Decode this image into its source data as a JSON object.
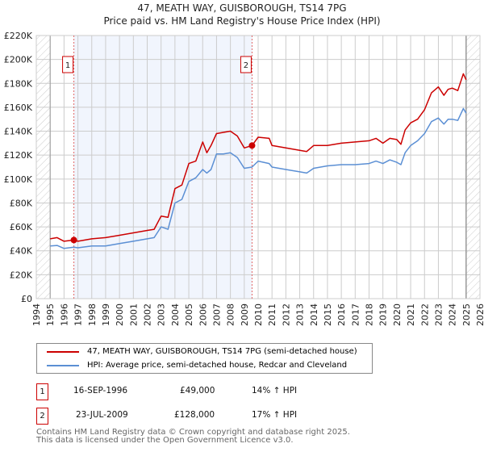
{
  "title_line1": "47, MEATH WAY, GUISBOROUGH, TS14 7PG",
  "title_line2": "Price paid vs. HM Land Registry's House Price Index (HPI)",
  "chart_data": {
    "type": "line",
    "title": "47, MEATH WAY, GUISBOROUGH, TS14 7PG — Price paid vs. HM Land Registry's House Price Index (HPI)",
    "xlim": [
      1994,
      2026
    ],
    "ylim": [
      0,
      220000
    ],
    "x_ticks": [
      "1994",
      "1995",
      "1996",
      "1997",
      "1998",
      "1999",
      "2000",
      "2001",
      "2002",
      "2003",
      "2004",
      "2005",
      "2006",
      "2007",
      "2008",
      "2009",
      "2010",
      "2011",
      "2012",
      "2013",
      "2014",
      "2015",
      "2016",
      "2017",
      "2018",
      "2019",
      "2020",
      "2021",
      "2022",
      "2023",
      "2024",
      "2025",
      "2026"
    ],
    "y_ticks": [
      {
        "v": 0,
        "label": "£0"
      },
      {
        "v": 20000,
        "label": "£20K"
      },
      {
        "v": 40000,
        "label": "£40K"
      },
      {
        "v": 60000,
        "label": "£60K"
      },
      {
        "v": 80000,
        "label": "£80K"
      },
      {
        "v": 100000,
        "label": "£100K"
      },
      {
        "v": 120000,
        "label": "£120K"
      },
      {
        "v": 140000,
        "label": "£140K"
      },
      {
        "v": 160000,
        "label": "£160K"
      },
      {
        "v": 180000,
        "label": "£180K"
      },
      {
        "v": 200000,
        "label": "£200K"
      },
      {
        "v": 220000,
        "label": "£220K"
      }
    ],
    "grid": true,
    "hatched_ranges": [
      [
        1994,
        1995
      ],
      [
        2025,
        2026
      ]
    ],
    "shaded_range": [
      1996.71,
      2009.56
    ],
    "series": [
      {
        "name": "47, MEATH WAY, GUISBOROUGH, TS14 7PG (semi-detached house)",
        "color": "#cc0000",
        "x": [
          1995,
          1995.5,
          1996,
          1996.71,
          1997,
          1998,
          1999,
          2000,
          2001,
          2002,
          2002.5,
          2003,
          2003.5,
          2004,
          2004.5,
          2005,
          2005.5,
          2006,
          2006.3,
          2006.6,
          2007,
          2007.5,
          2008,
          2008.5,
          2009,
          2009.56,
          2010,
          2010.8,
          2011,
          2012,
          2013,
          2013.5,
          2014,
          2015,
          2016,
          2017,
          2018,
          2018.5,
          2019,
          2019.5,
          2020,
          2020.3,
          2020.6,
          2021,
          2021.5,
          2022,
          2022.5,
          2023,
          2023.4,
          2023.7,
          2024,
          2024.4,
          2024.8,
          2025
        ],
        "y": [
          50000,
          51000,
          48000,
          49000,
          48000,
          50000,
          51000,
          53000,
          55000,
          57000,
          58000,
          69000,
          68000,
          92000,
          95000,
          113000,
          115000,
          131000,
          122000,
          128000,
          138000,
          139000,
          140000,
          136000,
          126000,
          128000,
          135000,
          134000,
          128000,
          126000,
          124000,
          123000,
          128000,
          128000,
          130000,
          131000,
          132000,
          134000,
          130000,
          134000,
          133000,
          129000,
          141000,
          147000,
          150000,
          158000,
          172000,
          177000,
          170000,
          175000,
          176000,
          174000,
          188000,
          183000
        ]
      },
      {
        "name": "HPI: Average price, semi-detached house, Redcar and Cleveland",
        "color": "#5b8fd4",
        "x": [
          1995,
          1995.5,
          1996,
          1996.71,
          1997,
          1998,
          1999,
          2000,
          2001,
          2002,
          2002.5,
          2003,
          2003.5,
          2004,
          2004.5,
          2005,
          2005.5,
          2006,
          2006.3,
          2006.6,
          2007,
          2007.5,
          2008,
          2008.5,
          2009,
          2009.56,
          2010,
          2010.8,
          2011,
          2012,
          2013,
          2013.5,
          2014,
          2015,
          2016,
          2017,
          2018,
          2018.5,
          2019,
          2019.5,
          2020,
          2020.3,
          2020.6,
          2021,
          2021.5,
          2022,
          2022.5,
          2023,
          2023.4,
          2023.7,
          2024,
          2024.4,
          2024.8,
          2025
        ],
        "y": [
          44000,
          44500,
          42000,
          43000,
          42500,
          44000,
          44000,
          46000,
          48000,
          50000,
          51000,
          60000,
          58000,
          80000,
          83000,
          98000,
          101000,
          108000,
          105000,
          108000,
          121000,
          121000,
          122000,
          118000,
          109000,
          110000,
          115000,
          113000,
          110000,
          108000,
          106000,
          105000,
          109000,
          111000,
          112000,
          112000,
          113000,
          115000,
          113000,
          116000,
          114000,
          112000,
          122000,
          128000,
          132000,
          138000,
          148000,
          151000,
          146000,
          150000,
          150000,
          149000,
          159000,
          155000
        ]
      }
    ],
    "annotations": [
      {
        "label": "1",
        "x": 1996.71,
        "y": 49000
      },
      {
        "label": "2",
        "x": 2009.56,
        "y": 128000
      }
    ],
    "legend_position": "bottom"
  },
  "legend": [
    {
      "label": "47, MEATH WAY, GUISBOROUGH, TS14 7PG (semi-detached house)",
      "color": "#cc0000"
    },
    {
      "label": "HPI: Average price, semi-detached house, Redcar and Cleveland",
      "color": "#5b8fd4"
    }
  ],
  "sales": [
    {
      "num": "1",
      "date": "16-SEP-1996",
      "price": "£49,000",
      "hpi": "14% ↑ HPI"
    },
    {
      "num": "2",
      "date": "23-JUL-2009",
      "price": "£128,000",
      "hpi": "17% ↑ HPI"
    }
  ],
  "footer_line1": "Contains HM Land Registry data © Crown copyright and database right 2025.",
  "footer_line2": "This data is licensed under the Open Government Licence v3.0."
}
